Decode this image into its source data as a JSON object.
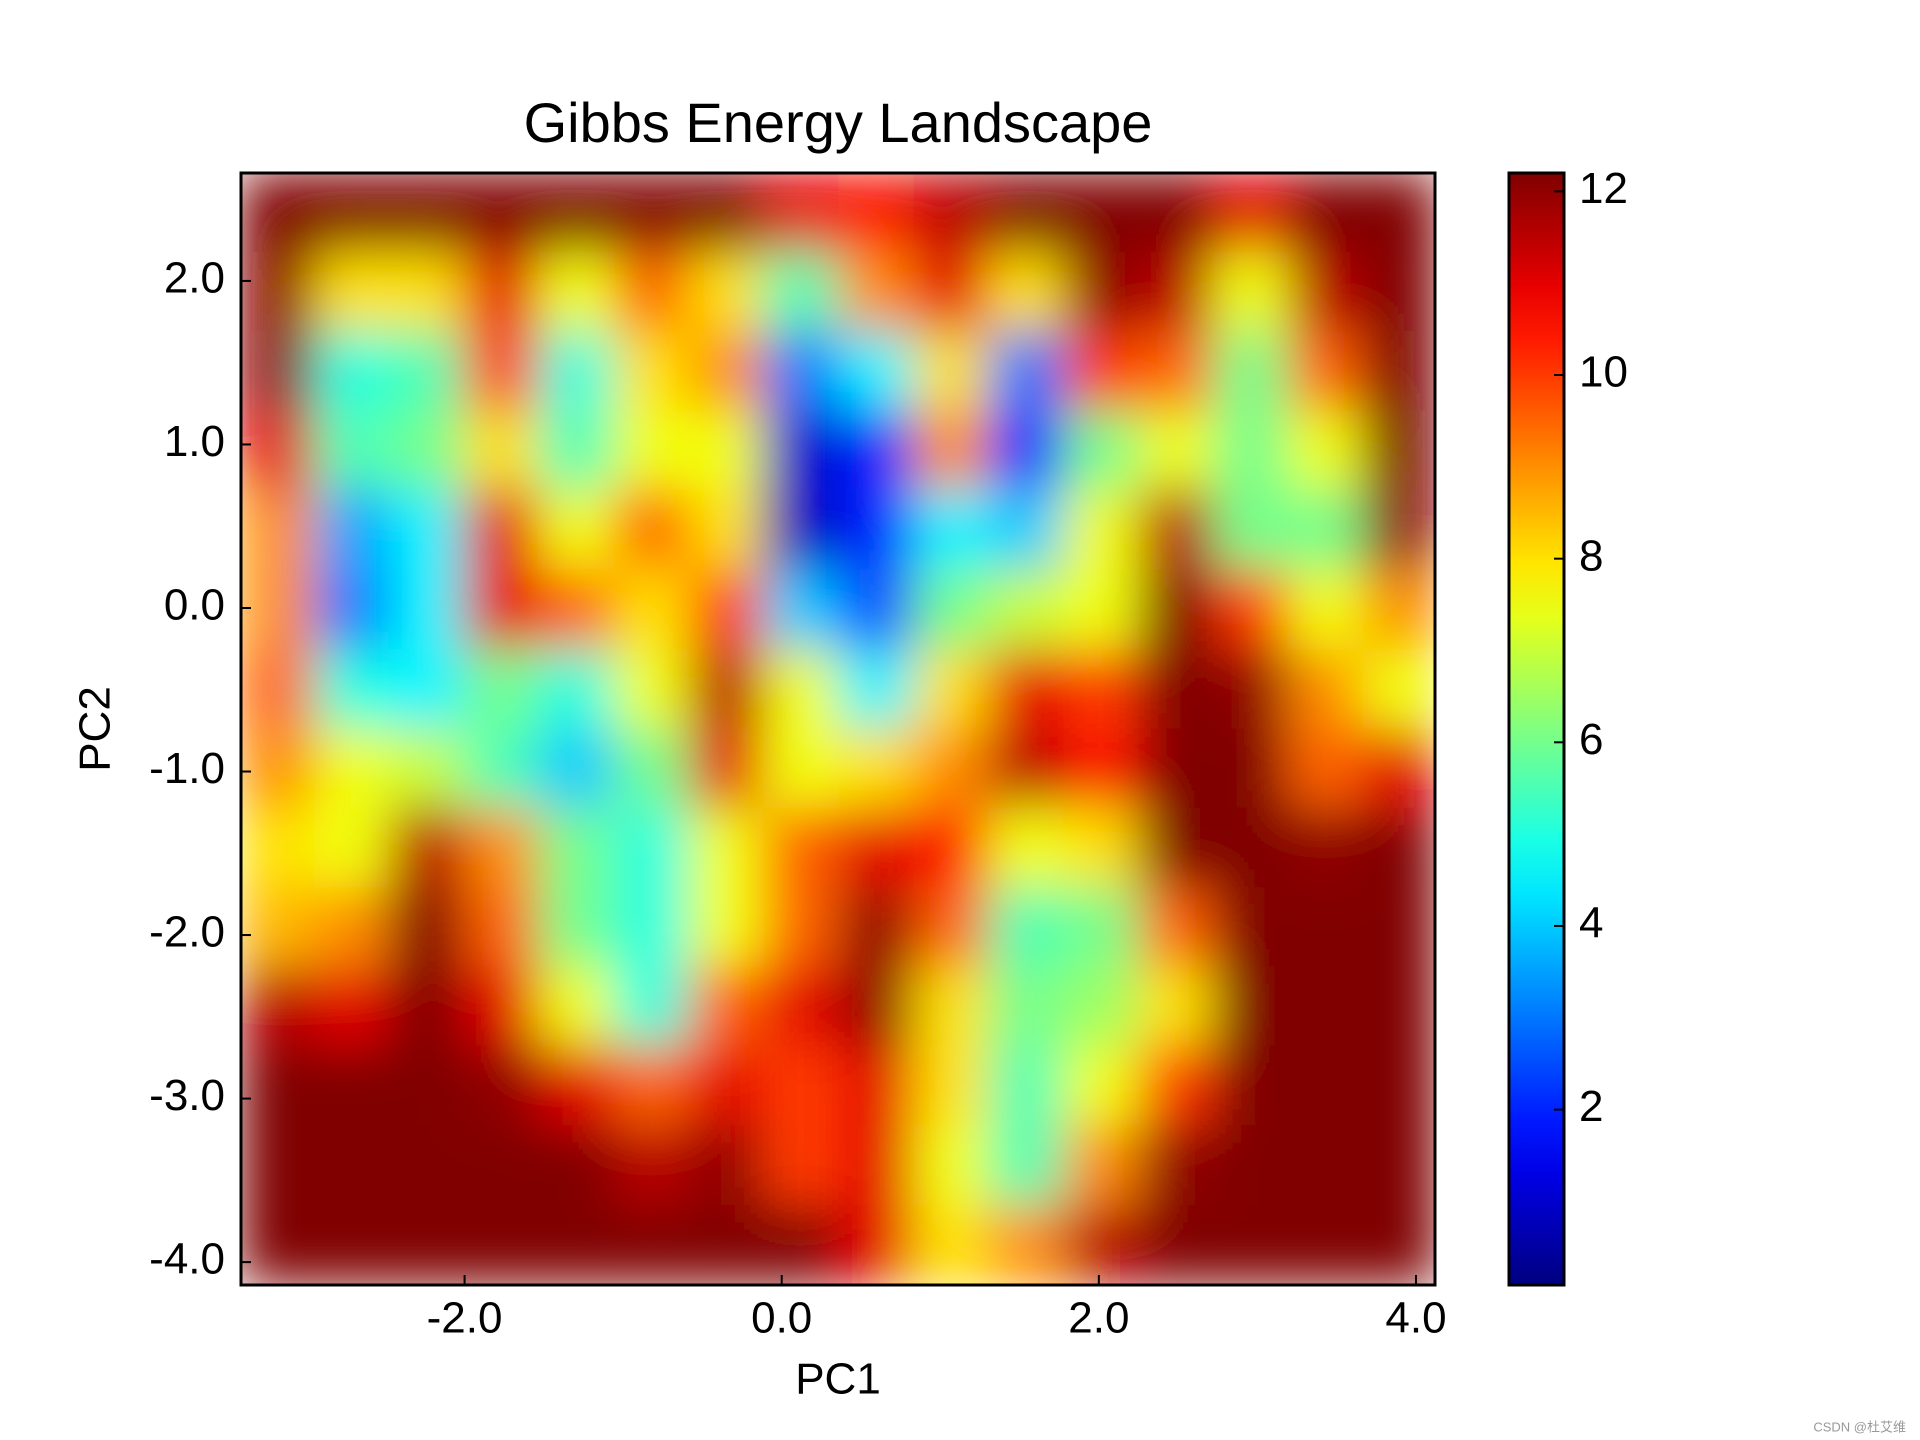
{
  "chart_data": {
    "type": "heatmap",
    "title": "Gibbs Energy Landscape",
    "xlabel": "PC1",
    "ylabel": "PC2",
    "x": [
      -3.18,
      -2.71,
      -2.24,
      -1.77,
      -1.29,
      -0.82,
      -0.35,
      0.12,
      0.6,
      1.07,
      1.54,
      2.02,
      2.49,
      2.96,
      3.43,
      3.9
    ],
    "y": [
      2.42,
      1.93,
      1.45,
      0.96,
      0.48,
      -0.01,
      -0.5,
      -0.98,
      -1.47,
      -1.95,
      -2.44,
      -2.92,
      -3.41,
      -3.9
    ],
    "z": [
      [
        12.2,
        12.2,
        12.2,
        12.2,
        12.2,
        12.2,
        12.2,
        11,
        10.5,
        11.5,
        12.2,
        12.2,
        12.2,
        11,
        12.2,
        12.2
      ],
      [
        12,
        8,
        8,
        11,
        7.5,
        9.5,
        8,
        5.5,
        9,
        11,
        8,
        12,
        11.5,
        7.5,
        11.5,
        12.2
      ],
      [
        12,
        5,
        5.5,
        10,
        5,
        8,
        9,
        3,
        4.5,
        8,
        3,
        10,
        9.5,
        6,
        9.5,
        12.2
      ],
      [
        11,
        5.5,
        6,
        8,
        5.5,
        7.5,
        7.5,
        1,
        2,
        9,
        2,
        6,
        7.5,
        6,
        7.5,
        12.2
      ],
      [
        9,
        3.5,
        4.5,
        11,
        7.5,
        9.5,
        8,
        0.8,
        2,
        4.5,
        4,
        7.5,
        11.5,
        6,
        6,
        12
      ],
      [
        9,
        3,
        4.5,
        11,
        9.5,
        8,
        10,
        4,
        2.5,
        6,
        7,
        7.5,
        12.2,
        10,
        7.5,
        9
      ],
      [
        9.5,
        5,
        4.5,
        6,
        5,
        7.5,
        11.5,
        7.5,
        4.5,
        8,
        11,
        10,
        12.2,
        12,
        9,
        7.5
      ],
      [
        9,
        7.5,
        7,
        5.5,
        4,
        6,
        11,
        7.5,
        8,
        9,
        11.5,
        10.5,
        12.2,
        12.2,
        9.5,
        11
      ],
      [
        8,
        7.5,
        11.5,
        9,
        6,
        5,
        7.5,
        9.5,
        11,
        10.5,
        7.5,
        8,
        12.2,
        12.2,
        12,
        12.2
      ],
      [
        8.5,
        9,
        12.2,
        9.5,
        6,
        5,
        7.5,
        9.5,
        12,
        9.5,
        5.5,
        6,
        9.5,
        12.2,
        12.2,
        12.2
      ],
      [
        11.5,
        11,
        12.2,
        11,
        7.5,
        5,
        9.5,
        11,
        12,
        8,
        6,
        6.5,
        8,
        12.2,
        12.2,
        12.2
      ],
      [
        12.2,
        12.2,
        12.2,
        12,
        11,
        9.5,
        11,
        10,
        11,
        8,
        5.5,
        7.5,
        10,
        12.2,
        12.2,
        12.2
      ],
      [
        12.2,
        12.2,
        12.2,
        12.2,
        12.2,
        11.5,
        12,
        10,
        11,
        7.5,
        5.5,
        9,
        12,
        12.2,
        12.2,
        12.2
      ],
      [
        12.2,
        12.2,
        12.2,
        12.2,
        12.2,
        12.2,
        12.2,
        12.2,
        11,
        8,
        9,
        11.5,
        12.2,
        12.2,
        12.2,
        12.2
      ]
    ],
    "colormap": "jet",
    "xlim": [
      -3.41,
      4.12
    ],
    "ylim": [
      -4.14,
      2.66
    ],
    "zlim": [
      0.09,
      12.2
    ],
    "xticks": [
      {
        "value": -2,
        "label": "-2.0"
      },
      {
        "value": 0,
        "label": "0.0"
      },
      {
        "value": 2,
        "label": "2.0"
      },
      {
        "value": 4,
        "label": "4.0"
      }
    ],
    "yticks": [
      {
        "value": -4,
        "label": "-4.0"
      },
      {
        "value": -3,
        "label": "-3.0"
      },
      {
        "value": -2,
        "label": "-2.0"
      },
      {
        "value": -1,
        "label": "-1.0"
      },
      {
        "value": 0,
        "label": "0.0"
      },
      {
        "value": 1,
        "label": "1.0"
      },
      {
        "value": 2,
        "label": "2.0"
      }
    ],
    "colorbar_ticks": [
      2,
      4,
      6,
      8,
      10,
      12
    ],
    "watermark": "CSDN @杜艾维"
  }
}
